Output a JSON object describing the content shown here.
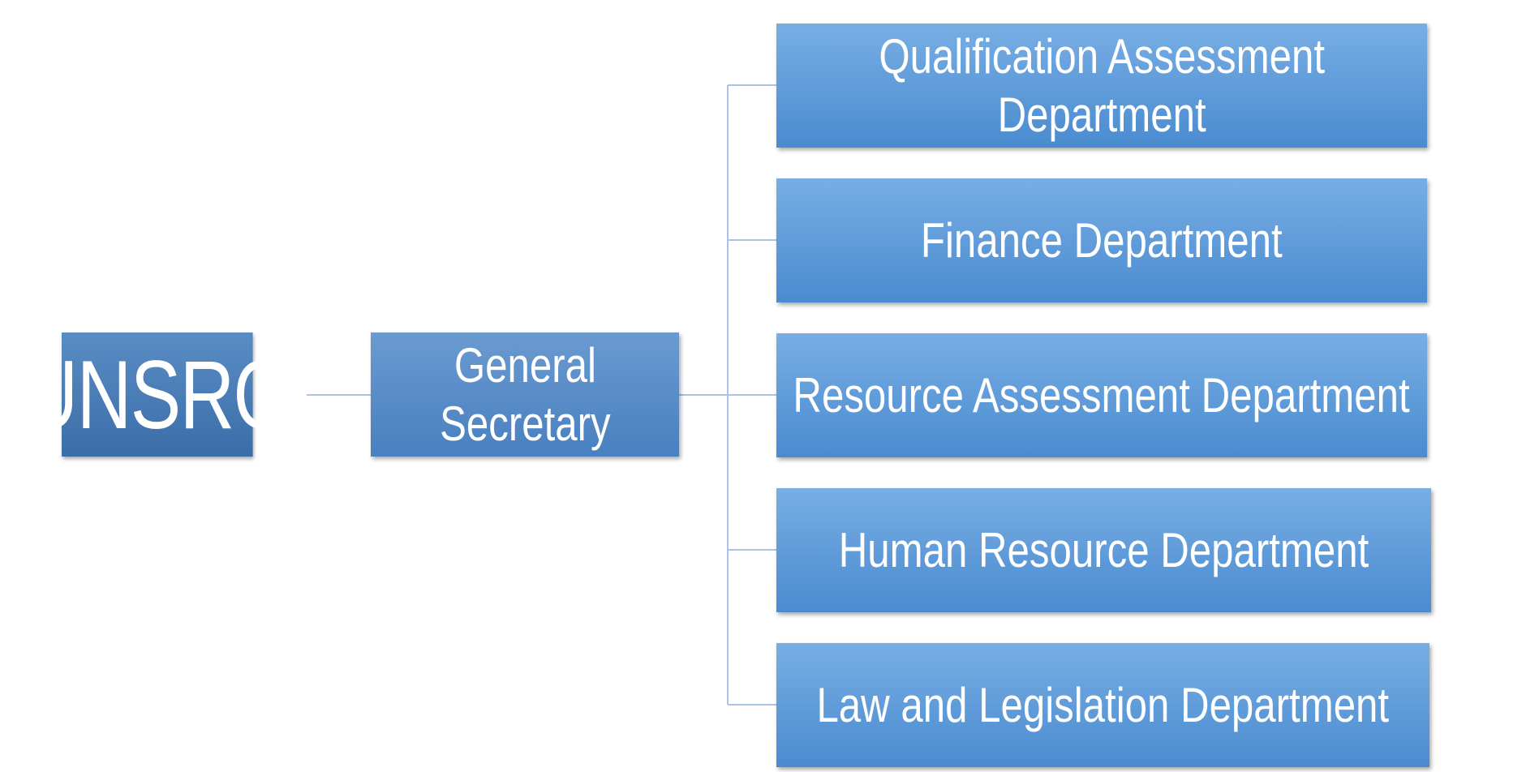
{
  "root": {
    "label": "UNSRO"
  },
  "secretary": {
    "line1": "General",
    "line2": "Secretary"
  },
  "departments": [
    {
      "line1": "Qualification Assessment",
      "line2": "Department"
    },
    {
      "label": "Finance Department"
    },
    {
      "label": "Resource Assessment Department"
    },
    {
      "label": "Human Resource Department"
    },
    {
      "label": "Law and Legislation Department"
    }
  ],
  "colors": {
    "root_box": "#3b6ea8",
    "secretary_box": "#4980c0",
    "department_box": "#4a8bd0",
    "connector": "#a9c3e2",
    "text": "#ffffff"
  }
}
